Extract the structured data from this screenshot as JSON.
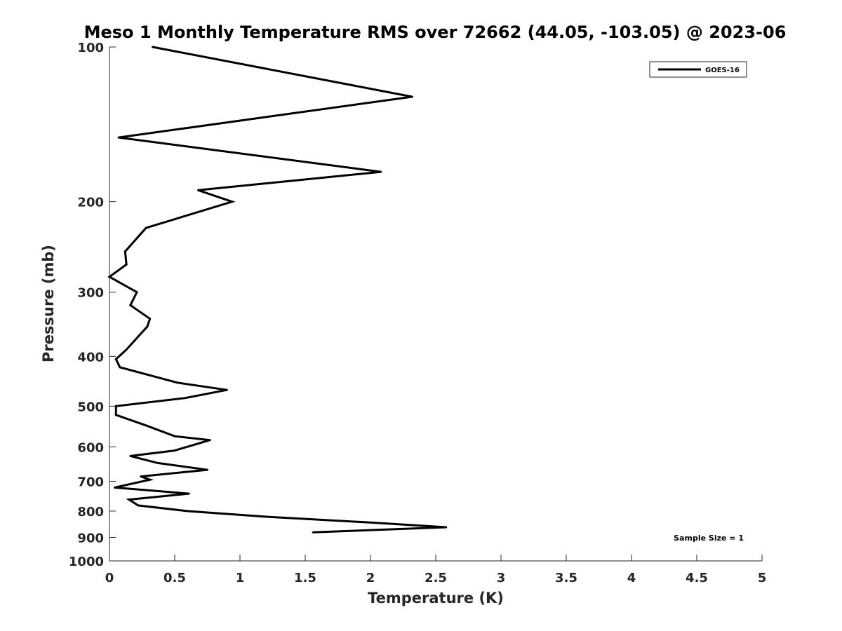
{
  "chart_data": {
    "type": "line",
    "title": "Meso 1 Monthly Temperature RMS over 72662 (44.05, -103.05) @ 2023-06",
    "xlabel": "Temperature (K)",
    "ylabel": "Pressure (mb)",
    "xlim": [
      0,
      5
    ],
    "ylim": [
      100,
      1000
    ],
    "y_scale": "log",
    "y_reversed": true,
    "x_ticks": [
      "0",
      "0.5",
      "1",
      "1.5",
      "2",
      "2.5",
      "3",
      "3.5",
      "4",
      "4.5",
      "5"
    ],
    "y_ticks": [
      "100",
      "200",
      "300",
      "400",
      "500",
      "600",
      "700",
      "800",
      "900",
      "1000"
    ],
    "legend_position": "top-right",
    "annotation": "Sample Size = 1",
    "series": [
      {
        "name": "GOES-16",
        "color": "#000000",
        "points": [
          [
            0.33,
            100
          ],
          [
            2.32,
            125
          ],
          [
            0.07,
            150
          ],
          [
            2.08,
            175
          ],
          [
            0.68,
            190
          ],
          [
            0.94,
            200
          ],
          [
            0.28,
            225
          ],
          [
            0.12,
            250
          ],
          [
            0.13,
            265
          ],
          [
            0.0,
            280
          ],
          [
            0.21,
            300
          ],
          [
            0.16,
            318
          ],
          [
            0.31,
            338
          ],
          [
            0.29,
            350
          ],
          [
            0.13,
            388
          ],
          [
            0.05,
            405
          ],
          [
            0.08,
            420
          ],
          [
            0.52,
            450
          ],
          [
            0.9,
            465
          ],
          [
            0.58,
            482
          ],
          [
            0.05,
            500
          ],
          [
            0.05,
            520
          ],
          [
            0.28,
            545
          ],
          [
            0.5,
            572
          ],
          [
            0.77,
            582
          ],
          [
            0.5,
            610
          ],
          [
            0.16,
            625
          ],
          [
            0.37,
            645
          ],
          [
            0.75,
            665
          ],
          [
            0.24,
            685
          ],
          [
            0.31,
            695
          ],
          [
            0.04,
            720
          ],
          [
            0.61,
            740
          ],
          [
            0.15,
            760
          ],
          [
            0.22,
            780
          ],
          [
            0.6,
            800
          ],
          [
            1.18,
            820
          ],
          [
            2.0,
            842
          ],
          [
            2.58,
            860
          ],
          [
            1.56,
            880
          ]
        ]
      }
    ]
  }
}
